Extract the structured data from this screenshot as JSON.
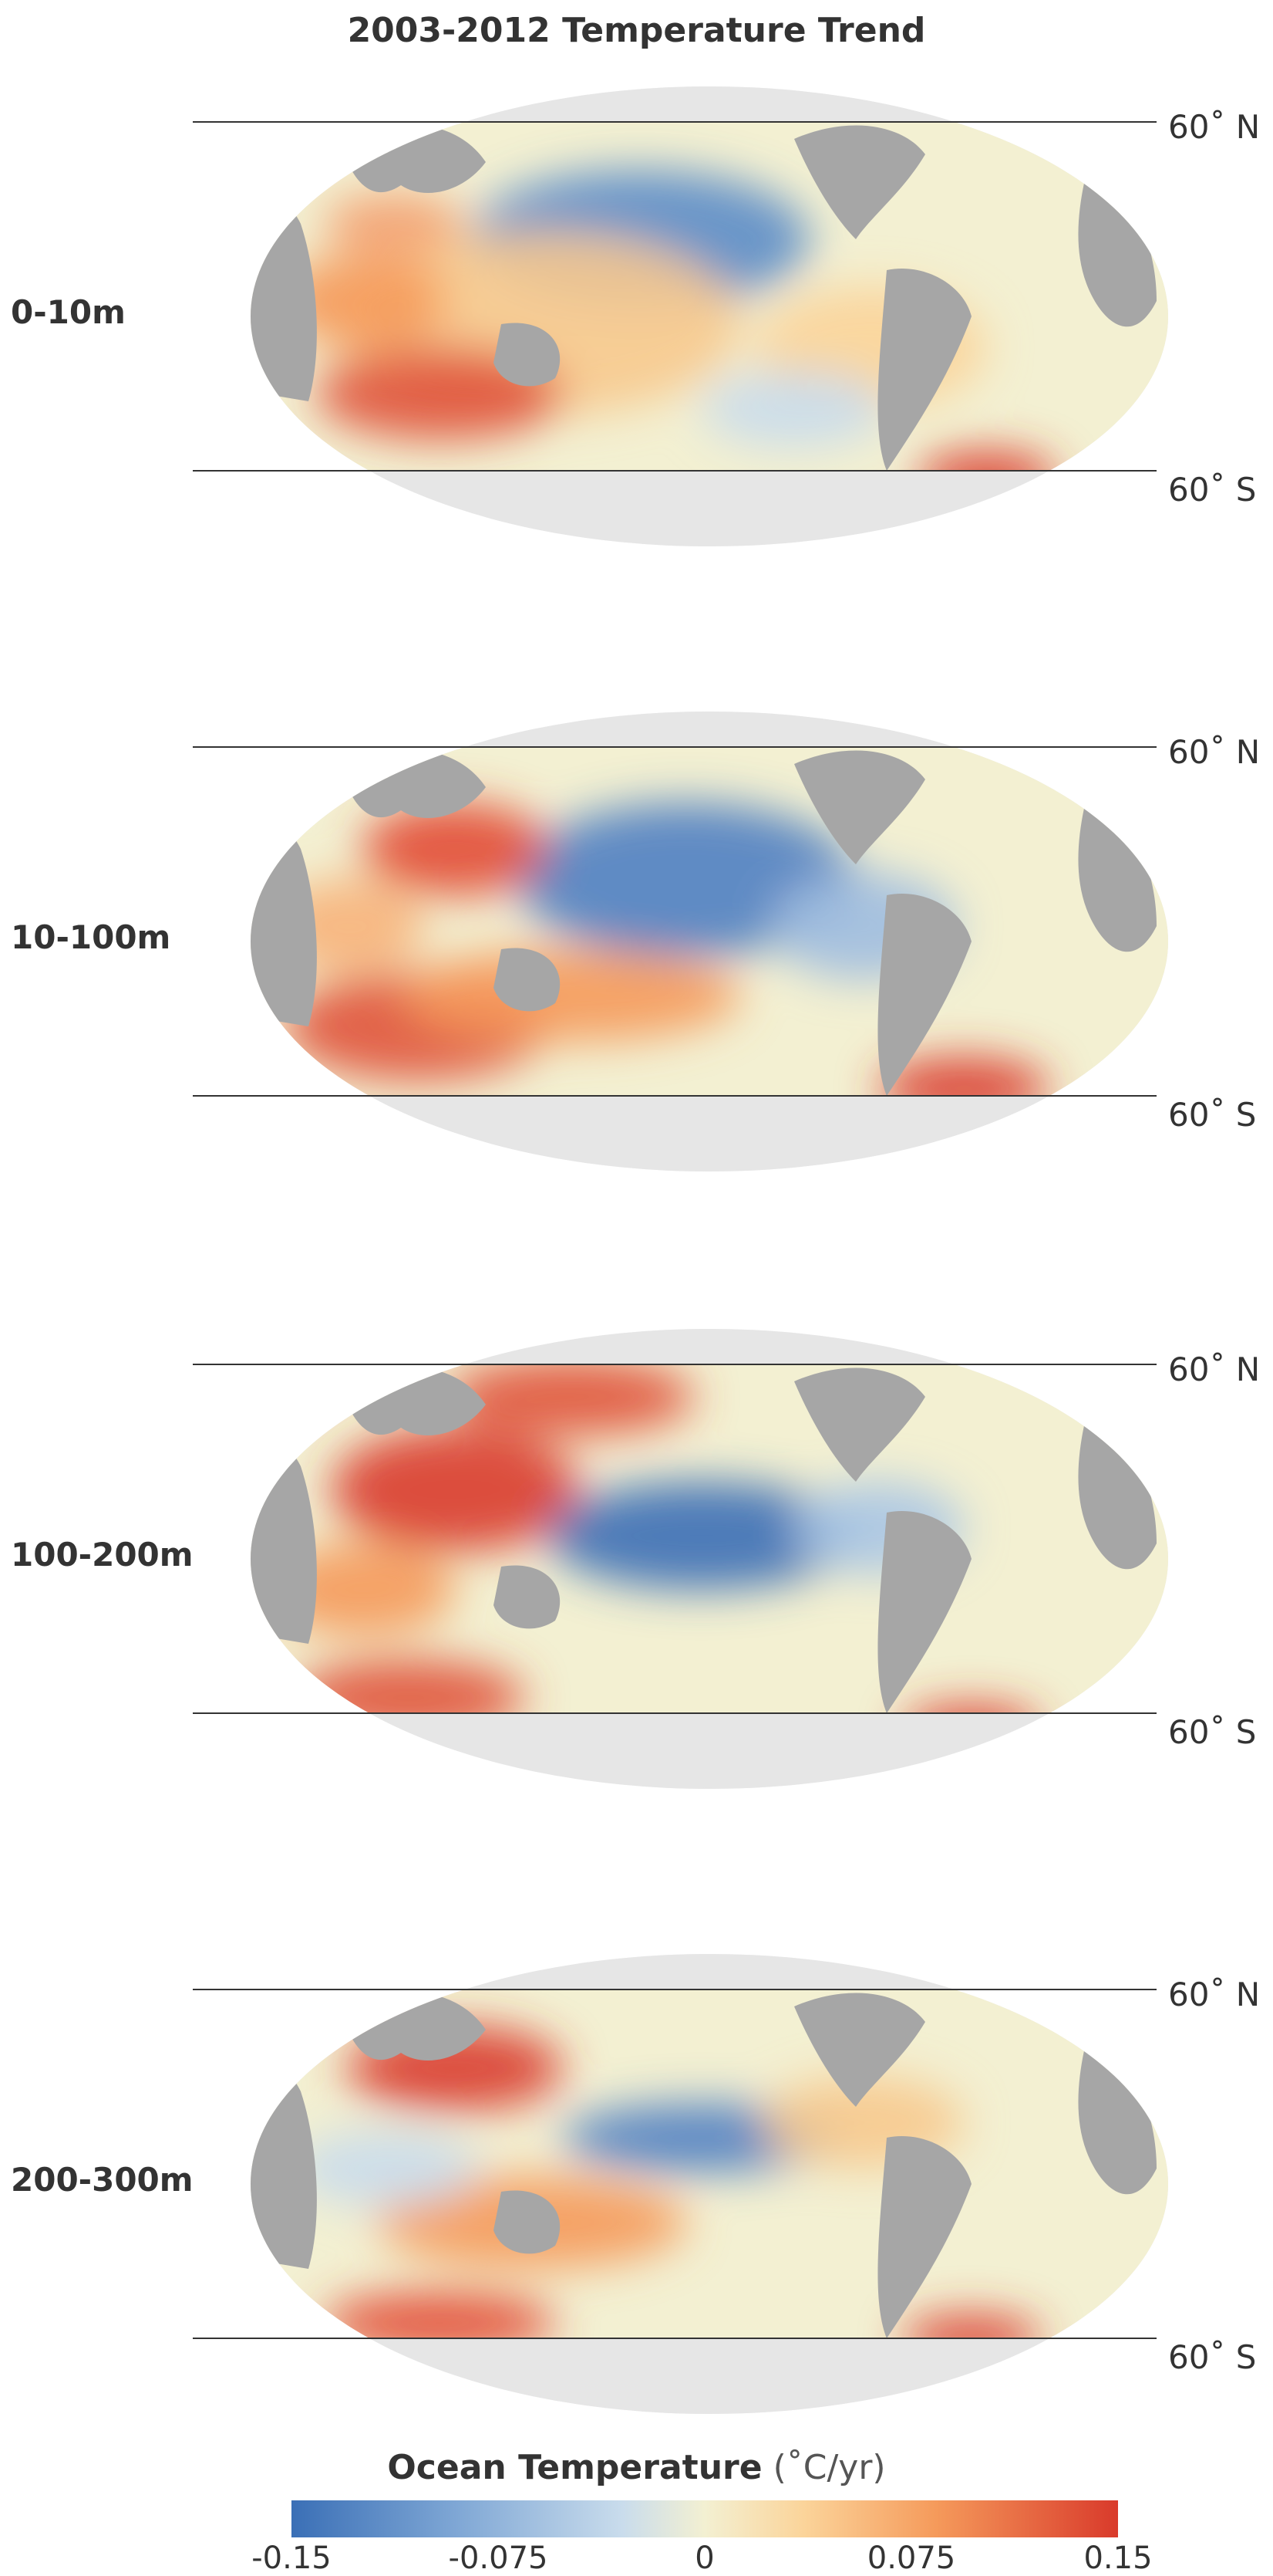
{
  "title": "2003-2012 Temperature Trend",
  "panels": [
    {
      "depth": "0-10m",
      "lat_north": "60˚ N",
      "lat_south": "60˚ S"
    },
    {
      "depth": "10-100m",
      "lat_north": "60˚ N",
      "lat_south": "60˚ S"
    },
    {
      "depth": "100-200m",
      "lat_north": "60˚ N",
      "lat_south": "60˚ S"
    },
    {
      "depth": "200-300m",
      "lat_north": "60˚ N",
      "lat_south": "60˚ S"
    }
  ],
  "colorbar": {
    "title": "Ocean Temperature",
    "unit": "(˚C/yr)",
    "ticks": [
      "-0.15",
      "-0.075",
      "0",
      "0.075",
      "0.15"
    ],
    "colors": {
      "cold": "#3a6fb6",
      "neutral": "#f3f0d2",
      "warm": "#d93a2b",
      "land": "#a6a6a6",
      "polar": "#e6e6e6"
    }
  }
}
